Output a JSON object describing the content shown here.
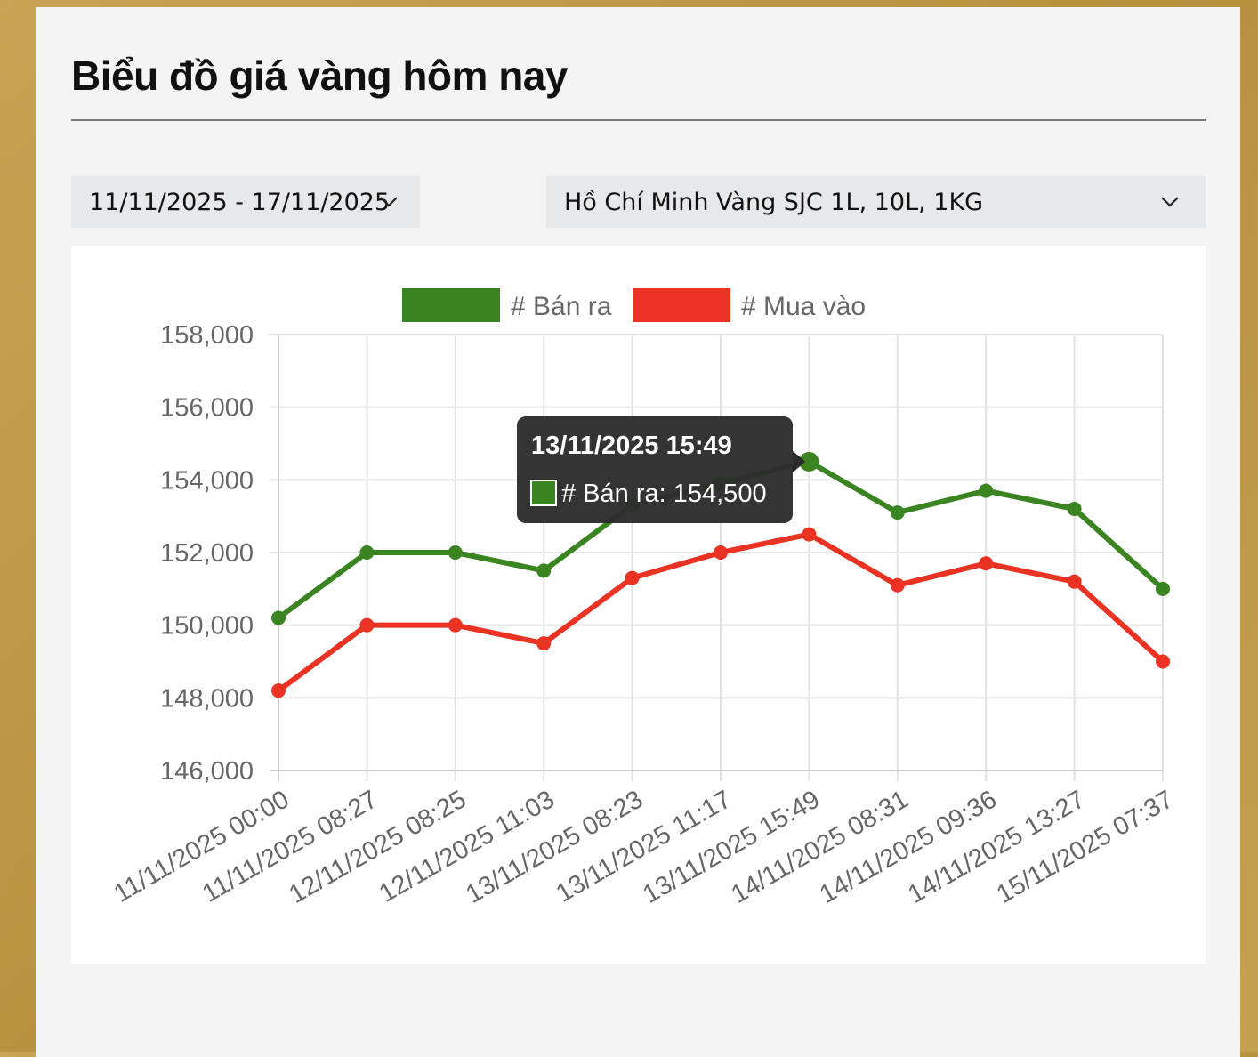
{
  "page": {
    "title": "Biểu đồ giá vàng hôm nay"
  },
  "filters": {
    "date_range": "11/11/2025 - 17/11/2025",
    "location_product": "Hồ Chí Minh Vàng SJC 1L, 10L, 1KG"
  },
  "icons": {
    "dropdown": "chevron-down-icon"
  },
  "colors": {
    "ban_ra": "#3a8421",
    "mua_vao": "#ea3323",
    "tooltip_bg": "#2c2c2c"
  },
  "chart_data": {
    "type": "line",
    "title": "",
    "xlabel": "",
    "ylabel": "",
    "categories": [
      "11/11/2025 00:00",
      "11/11/2025 08:27",
      "12/11/2025 08:25",
      "12/11/2025 11:03",
      "13/11/2025 08:23",
      "13/11/2025 11:17",
      "13/11/2025 15:49",
      "14/11/2025 08:31",
      "14/11/2025 09:36",
      "14/11/2025 13:27",
      "15/11/2025 07:37"
    ],
    "series": [
      {
        "name": "# Bán ra",
        "color": "#3a8421",
        "values": [
          150200,
          152000,
          152000,
          151500,
          153300,
          153900,
          154500,
          153100,
          153700,
          153200,
          151000
        ]
      },
      {
        "name": "# Mua vào",
        "color": "#ea3323",
        "values": [
          148200,
          150000,
          150000,
          149500,
          151300,
          152000,
          152500,
          151100,
          151700,
          151200,
          149000
        ]
      }
    ],
    "ylim": [
      146000,
      158000
    ],
    "yticks": [
      "158,000",
      "156,000",
      "154,000",
      "152,000",
      "150,000",
      "148,000",
      "146,000"
    ],
    "grid": true,
    "legend": "top-center",
    "tooltip": {
      "title": "13/11/2025 15:49",
      "label": "# Bán ra: 154,500"
    }
  }
}
